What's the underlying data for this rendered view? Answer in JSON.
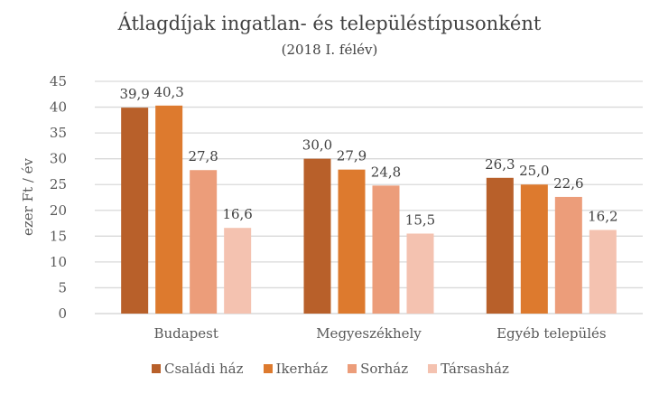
{
  "chart_data": {
    "type": "bar",
    "title": "Átlagdíjak ingatlan- és településtípusonként",
    "subtitle": "(2018 I. félév)",
    "xlabel": "",
    "ylabel": "ezer Ft / év",
    "ylim": [
      0,
      45
    ],
    "yticks": [
      "0",
      "5",
      "10",
      "15",
      "20",
      "25",
      "30",
      "35",
      "40",
      "45"
    ],
    "grid": true,
    "legend_position": "bottom",
    "categories": [
      "Budapest",
      "Megyeszékhely",
      "Egyéb település"
    ],
    "series": [
      {
        "name": "Családi ház",
        "color": "#b8602a",
        "values": [
          39.9,
          30.0,
          26.3
        ],
        "labels": [
          "39,9",
          "30,0",
          "26,3"
        ]
      },
      {
        "name": "Ikerház",
        "color": "#dd7a2e",
        "values": [
          40.3,
          27.9,
          25.0
        ],
        "labels": [
          "40,3",
          "27,9",
          "25,0"
        ]
      },
      {
        "name": "Sorház",
        "color": "#ec9d7a",
        "values": [
          27.8,
          24.8,
          22.6
        ],
        "labels": [
          "27,8",
          "24,8",
          "22,6"
        ]
      },
      {
        "name": "Társasház",
        "color": "#f4c2b0",
        "values": [
          16.6,
          15.5,
          16.2
        ],
        "labels": [
          "16,6",
          "15,5",
          "16,2"
        ]
      }
    ]
  }
}
